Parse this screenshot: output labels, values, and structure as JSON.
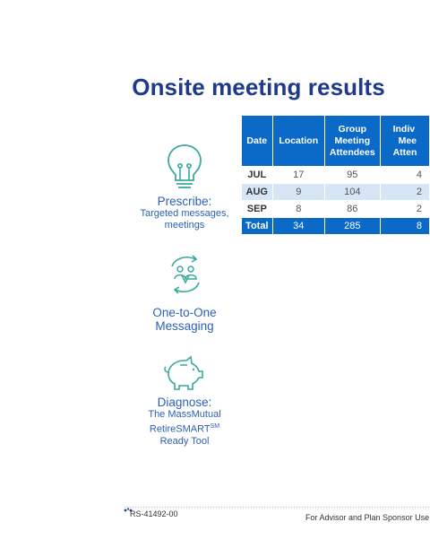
{
  "title": "Onsite meeting results",
  "steps": [
    {
      "icon": "lightbulb-icon",
      "head": "Prescribe:",
      "line1": "Targeted messages,",
      "line2": "meetings"
    },
    {
      "icon": "people-cycle-icon",
      "head1": "One-to-One",
      "head2": "Messaging"
    },
    {
      "icon": "piggy-bank-icon",
      "head": "Diagnose:",
      "line1": "The MassMutual",
      "line2": "RetireSMART",
      "sup": "SM",
      "line3": "Ready Tool"
    }
  ],
  "table": {
    "headers": {
      "date": "Date",
      "location": "Location",
      "group1": "Group",
      "group2": "Meeting",
      "group3": "Attendees",
      "ind1": "Indiv",
      "ind2": "Mee",
      "ind3": "Atten"
    },
    "rows": [
      {
        "month": "JUL",
        "location": "17",
        "group": "95",
        "individual": "4"
      },
      {
        "month": "AUG",
        "location": "9",
        "group": "104",
        "individual": "2"
      },
      {
        "month": "SEP",
        "location": "8",
        "group": "86",
        "individual": "2"
      }
    ],
    "total": {
      "label": "Total",
      "location": "34",
      "group": "285",
      "individual": "8"
    }
  },
  "footer": {
    "code": "RS-41492-00",
    "note": "For Advisor and Plan Sponsor Use On"
  },
  "colors": {
    "title": "#1f3a8a",
    "accent": "#0b69c7",
    "icon": "#3aa99f",
    "label": "#2b5fb7"
  }
}
